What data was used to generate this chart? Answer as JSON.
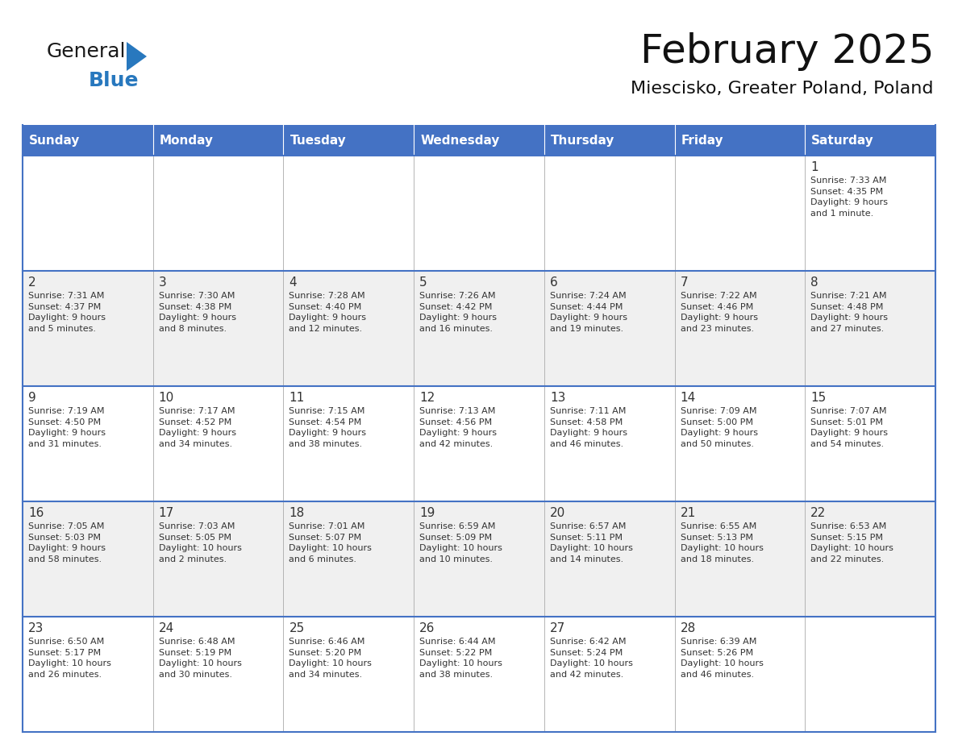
{
  "title": "February 2025",
  "subtitle": "Miescisko, Greater Poland, Poland",
  "header_color": "#4472C4",
  "header_text_color": "#FFFFFF",
  "days_of_week": [
    "Sunday",
    "Monday",
    "Tuesday",
    "Wednesday",
    "Thursday",
    "Friday",
    "Saturday"
  ],
  "bg_color": "#FFFFFF",
  "alt_row_color": "#F0F0F0",
  "cell_text_color": "#333333",
  "border_color": "#4472C4",
  "cell_border_color": "#AAAAAA",
  "calendar_data": [
    [
      {
        "day": null,
        "info": null
      },
      {
        "day": null,
        "info": null
      },
      {
        "day": null,
        "info": null
      },
      {
        "day": null,
        "info": null
      },
      {
        "day": null,
        "info": null
      },
      {
        "day": null,
        "info": null
      },
      {
        "day": 1,
        "info": "Sunrise: 7:33 AM\nSunset: 4:35 PM\nDaylight: 9 hours\nand 1 minute."
      }
    ],
    [
      {
        "day": 2,
        "info": "Sunrise: 7:31 AM\nSunset: 4:37 PM\nDaylight: 9 hours\nand 5 minutes."
      },
      {
        "day": 3,
        "info": "Sunrise: 7:30 AM\nSunset: 4:38 PM\nDaylight: 9 hours\nand 8 minutes."
      },
      {
        "day": 4,
        "info": "Sunrise: 7:28 AM\nSunset: 4:40 PM\nDaylight: 9 hours\nand 12 minutes."
      },
      {
        "day": 5,
        "info": "Sunrise: 7:26 AM\nSunset: 4:42 PM\nDaylight: 9 hours\nand 16 minutes."
      },
      {
        "day": 6,
        "info": "Sunrise: 7:24 AM\nSunset: 4:44 PM\nDaylight: 9 hours\nand 19 minutes."
      },
      {
        "day": 7,
        "info": "Sunrise: 7:22 AM\nSunset: 4:46 PM\nDaylight: 9 hours\nand 23 minutes."
      },
      {
        "day": 8,
        "info": "Sunrise: 7:21 AM\nSunset: 4:48 PM\nDaylight: 9 hours\nand 27 minutes."
      }
    ],
    [
      {
        "day": 9,
        "info": "Sunrise: 7:19 AM\nSunset: 4:50 PM\nDaylight: 9 hours\nand 31 minutes."
      },
      {
        "day": 10,
        "info": "Sunrise: 7:17 AM\nSunset: 4:52 PM\nDaylight: 9 hours\nand 34 minutes."
      },
      {
        "day": 11,
        "info": "Sunrise: 7:15 AM\nSunset: 4:54 PM\nDaylight: 9 hours\nand 38 minutes."
      },
      {
        "day": 12,
        "info": "Sunrise: 7:13 AM\nSunset: 4:56 PM\nDaylight: 9 hours\nand 42 minutes."
      },
      {
        "day": 13,
        "info": "Sunrise: 7:11 AM\nSunset: 4:58 PM\nDaylight: 9 hours\nand 46 minutes."
      },
      {
        "day": 14,
        "info": "Sunrise: 7:09 AM\nSunset: 5:00 PM\nDaylight: 9 hours\nand 50 minutes."
      },
      {
        "day": 15,
        "info": "Sunrise: 7:07 AM\nSunset: 5:01 PM\nDaylight: 9 hours\nand 54 minutes."
      }
    ],
    [
      {
        "day": 16,
        "info": "Sunrise: 7:05 AM\nSunset: 5:03 PM\nDaylight: 9 hours\nand 58 minutes."
      },
      {
        "day": 17,
        "info": "Sunrise: 7:03 AM\nSunset: 5:05 PM\nDaylight: 10 hours\nand 2 minutes."
      },
      {
        "day": 18,
        "info": "Sunrise: 7:01 AM\nSunset: 5:07 PM\nDaylight: 10 hours\nand 6 minutes."
      },
      {
        "day": 19,
        "info": "Sunrise: 6:59 AM\nSunset: 5:09 PM\nDaylight: 10 hours\nand 10 minutes."
      },
      {
        "day": 20,
        "info": "Sunrise: 6:57 AM\nSunset: 5:11 PM\nDaylight: 10 hours\nand 14 minutes."
      },
      {
        "day": 21,
        "info": "Sunrise: 6:55 AM\nSunset: 5:13 PM\nDaylight: 10 hours\nand 18 minutes."
      },
      {
        "day": 22,
        "info": "Sunrise: 6:53 AM\nSunset: 5:15 PM\nDaylight: 10 hours\nand 22 minutes."
      }
    ],
    [
      {
        "day": 23,
        "info": "Sunrise: 6:50 AM\nSunset: 5:17 PM\nDaylight: 10 hours\nand 26 minutes."
      },
      {
        "day": 24,
        "info": "Sunrise: 6:48 AM\nSunset: 5:19 PM\nDaylight: 10 hours\nand 30 minutes."
      },
      {
        "day": 25,
        "info": "Sunrise: 6:46 AM\nSunset: 5:20 PM\nDaylight: 10 hours\nand 34 minutes."
      },
      {
        "day": 26,
        "info": "Sunrise: 6:44 AM\nSunset: 5:22 PM\nDaylight: 10 hours\nand 38 minutes."
      },
      {
        "day": 27,
        "info": "Sunrise: 6:42 AM\nSunset: 5:24 PM\nDaylight: 10 hours\nand 42 minutes."
      },
      {
        "day": 28,
        "info": "Sunrise: 6:39 AM\nSunset: 5:26 PM\nDaylight: 10 hours\nand 46 minutes."
      },
      {
        "day": null,
        "info": null
      }
    ]
  ],
  "logo_general_color": "#1a1a1a",
  "logo_blue_color": "#2878BE",
  "logo_triangle_color": "#2878BE",
  "title_fontsize": 36,
  "subtitle_fontsize": 16,
  "header_fontsize": 11,
  "day_num_fontsize": 11,
  "info_fontsize": 8
}
